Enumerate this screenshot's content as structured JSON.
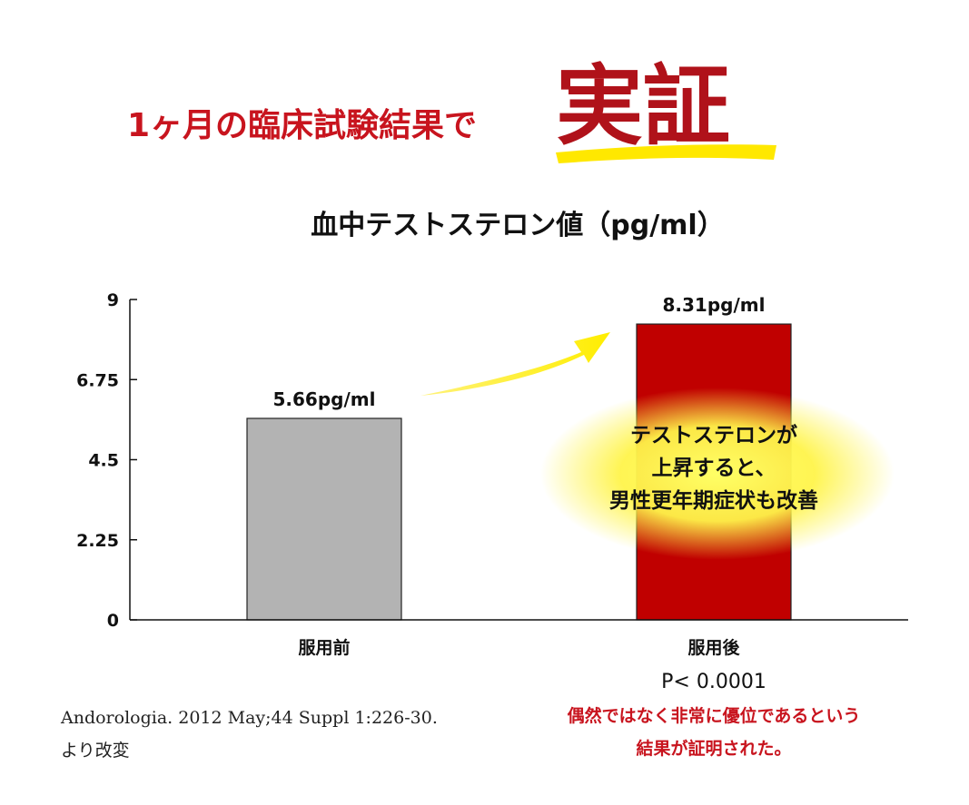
{
  "headline": {
    "lead": "1ヶ月の臨床試験結果で",
    "emphasis": "実証"
  },
  "chart_data": {
    "type": "bar",
    "title": "血中テストステロン値（pg/ml）",
    "categories": [
      "服用前",
      "服用後"
    ],
    "values": [
      5.66,
      8.31
    ],
    "value_labels": [
      "5.66pg/ml",
      "8.31pg/ml"
    ],
    "colors": [
      "#b3b3b3",
      "#c00000"
    ],
    "ylim": [
      0,
      9
    ],
    "yticks": [
      0,
      2.25,
      4.5,
      6.75,
      9
    ],
    "annotation": [
      "テストステロンが",
      "上昇すると、",
      "男性更年期症状も改善"
    ],
    "p_value": "P< 0.0001",
    "note": [
      "偶然ではなく非常に優位であるという",
      "結果が証明された。"
    ]
  },
  "source": [
    "Andorologia. 2012 May;44 Suppl 1:226-30.",
    "より改変"
  ]
}
